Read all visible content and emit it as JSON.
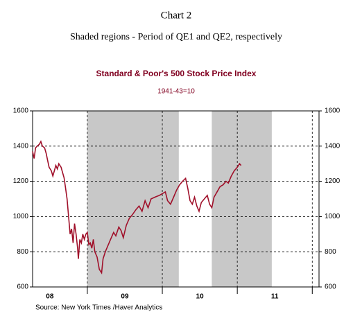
{
  "chart_data": {
    "type": "line",
    "title": "Chart 2",
    "subtitle": "Shaded regions - Period of QE1 and QE2, respectively",
    "chart_title": "Standard & Poor's 500 Stock Price Index",
    "chart_subtitle": "1941-43=10",
    "source": "Source:  New York Times /Haver Analytics",
    "xlim": [
      2008.27,
      2012.09
    ],
    "xticks": [
      2009,
      2010,
      2011,
      2012
    ],
    "x_labels": [
      {
        "value": 2008.5,
        "label": "08"
      },
      {
        "value": 2009.5,
        "label": "09"
      },
      {
        "value": 2010.5,
        "label": "10"
      },
      {
        "value": 2011.5,
        "label": "11"
      }
    ],
    "ylim": [
      600,
      1600
    ],
    "yticks": [
      600,
      800,
      1000,
      1200,
      1400,
      1600
    ],
    "y2lim": [
      600,
      1600
    ],
    "y2ticks": [
      600,
      800,
      1000,
      1200,
      1400,
      1600
    ],
    "grid": true,
    "shaded_regions": [
      [
        2009.0,
        2010.22
      ],
      [
        2010.66,
        2011.46
      ]
    ],
    "shade_color": "#c8c8c8",
    "series": [
      {
        "name": "S&P 500",
        "color": "#a0102a",
        "x": [
          2008.27,
          2008.29,
          2008.31,
          2008.33,
          2008.36,
          2008.38,
          2008.4,
          2008.43,
          2008.45,
          2008.47,
          2008.49,
          2008.52,
          2008.54,
          2008.56,
          2008.58,
          2008.6,
          2008.62,
          2008.65,
          2008.67,
          2008.69,
          2008.71,
          2008.73,
          2008.75,
          2008.77,
          2008.79,
          2008.81,
          2008.83,
          2008.85,
          2008.87,
          2008.88,
          2008.9,
          2008.92,
          2008.94,
          2008.96,
          2008.98,
          2009.0,
          2009.02,
          2009.04,
          2009.06,
          2009.08,
          2009.1,
          2009.13,
          2009.16,
          2009.19,
          2009.21,
          2009.24,
          2009.27,
          2009.31,
          2009.35,
          2009.38,
          2009.42,
          2009.45,
          2009.48,
          2009.52,
          2009.56,
          2009.6,
          2009.65,
          2009.69,
          2009.73,
          2009.77,
          2009.81,
          2009.85,
          2009.9,
          2009.96,
          2010.0,
          2010.04,
          2010.07,
          2010.11,
          2010.15,
          2010.19,
          2010.23,
          2010.27,
          2010.31,
          2010.34,
          2010.37,
          2010.4,
          2010.43,
          2010.46,
          2010.49,
          2010.52,
          2010.56,
          2010.6,
          2010.63,
          2010.66,
          2010.69,
          2010.73,
          2010.77,
          2010.81,
          2010.85,
          2010.88,
          2010.92,
          2010.96,
          2011.0,
          2011.03,
          2011.05
        ],
        "values": [
          1370,
          1330,
          1390,
          1400,
          1410,
          1426,
          1400,
          1390,
          1360,
          1320,
          1280,
          1260,
          1230,
          1260,
          1290,
          1270,
          1300,
          1280,
          1250,
          1220,
          1160,
          1100,
          1000,
          900,
          930,
          850,
          960,
          900,
          820,
          760,
          870,
          850,
          900,
          870,
          900,
          910,
          840,
          850,
          820,
          870,
          800,
          770,
          700,
          680,
          760,
          800,
          830,
          870,
          910,
          890,
          940,
          920,
          880,
          950,
          990,
          1010,
          1040,
          1060,
          1030,
          1090,
          1050,
          1100,
          1110,
          1120,
          1130,
          1140,
          1090,
          1070,
          1110,
          1150,
          1180,
          1200,
          1217,
          1160,
          1090,
          1070,
          1110,
          1060,
          1030,
          1080,
          1100,
          1120,
          1070,
          1050,
          1110,
          1140,
          1170,
          1180,
          1200,
          1190,
          1230,
          1260,
          1280,
          1300,
          1290
        ]
      }
    ]
  }
}
